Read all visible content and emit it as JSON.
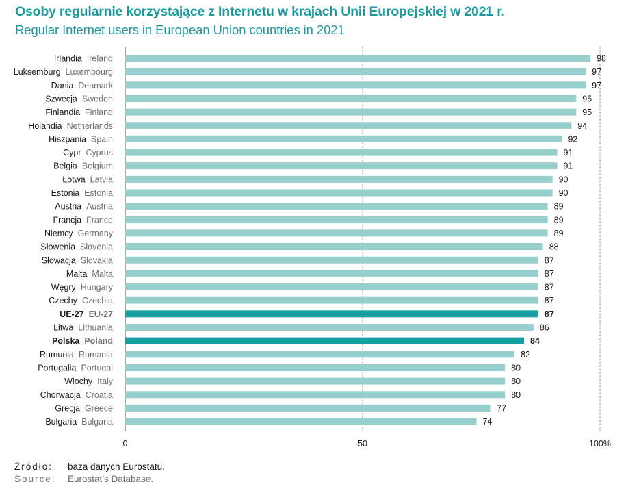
{
  "title_pl": "Osoby regularnie korzystające z Internetu w krajach Unii Europejskiej w 2021 r.",
  "title_en": "Regular Internet users in European Union countries in 2021",
  "colors": {
    "bar": "#96cfcc",
    "highlight": "#17a0a2",
    "title": "#1b9aa0"
  },
  "chart_data": {
    "type": "bar",
    "orientation": "horizontal",
    "xlim": [
      0,
      100
    ],
    "xticks": [
      "0",
      "50",
      "100%"
    ],
    "grid": "vertical",
    "categories_pl": [
      "Irlandia",
      "Luksemburg",
      "Dania",
      "Szwecja",
      "Finlandia",
      "Holandia",
      "Hiszpania",
      "Cypr",
      "Belgia",
      "Łotwa",
      "Estonia",
      "Austria",
      "Francja",
      "Niemcy",
      "Słowenia",
      "Słowacja",
      "Malta",
      "Węgry",
      "Czechy",
      "UE-27",
      "Litwa",
      "Polska",
      "Rumunia",
      "Portugalia",
      "Włochy",
      "Chorwacja",
      "Grecja",
      "Bułgaria"
    ],
    "categories_en": [
      "Ireland",
      "Luxembourg",
      "Denmark",
      "Sweden",
      "Finland",
      "Netherlands",
      "Spain",
      "Cyprus",
      "Belgium",
      "Latvia",
      "Estonia",
      "Austria",
      "France",
      "Germany",
      "Slovenia",
      "Slovakia",
      "Malta",
      "Hungary",
      "Czechia",
      "EU-27",
      "Lithuania",
      "Poland",
      "Romania",
      "Portugal",
      "Italy",
      "Croatia",
      "Greece",
      "Bulgaria"
    ],
    "values": [
      98,
      97,
      97,
      95,
      95,
      94,
      92,
      91,
      91,
      90,
      90,
      89,
      89,
      89,
      88,
      87,
      87,
      87,
      87,
      87,
      86,
      84,
      82,
      80,
      80,
      80,
      77,
      74
    ],
    "highlight": [
      "EU-27",
      "Poland"
    ]
  },
  "source": {
    "pl_key": "Źródło:",
    "pl_text": "baza danych Eurostatu.",
    "en_key": "Source:",
    "en_text": "Eurostat’s Database."
  }
}
